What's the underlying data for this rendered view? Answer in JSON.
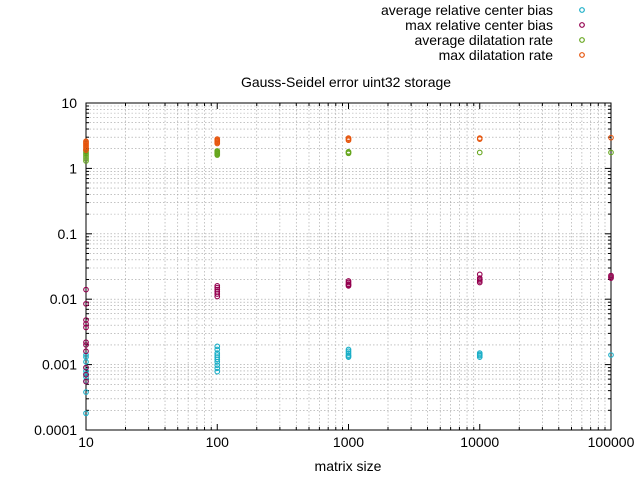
{
  "chart_data": {
    "type": "scatter",
    "title": "Gauss-Seidel error uint32 storage",
    "xlabel": "matrix size",
    "ylabel": "",
    "x_scale": "log",
    "y_scale": "log",
    "xlim": [
      10,
      100000
    ],
    "ylim": [
      0.0001,
      10
    ],
    "grid": true,
    "legend_position": "top-right",
    "x_ticks": [
      {
        "value": 10,
        "label": "10"
      },
      {
        "value": 100,
        "label": "100"
      },
      {
        "value": 1000,
        "label": "1000"
      },
      {
        "value": 10000,
        "label": "10000"
      },
      {
        "value": 100000,
        "label": "100000"
      }
    ],
    "y_ticks": [
      {
        "value": 0.0001,
        "label": "0.0001"
      },
      {
        "value": 0.001,
        "label": "0.001"
      },
      {
        "value": 0.01,
        "label": "0.01"
      },
      {
        "value": 0.1,
        "label": "0.1"
      },
      {
        "value": 1,
        "label": "1"
      },
      {
        "value": 10,
        "label": "10"
      }
    ],
    "series": [
      {
        "name": "average relative center bias",
        "color": "#1aaec7",
        "points": [
          [
            10,
            0.00018
          ],
          [
            10,
            0.00038
          ],
          [
            10,
            0.00056
          ],
          [
            10,
            0.00065
          ],
          [
            10,
            0.00072
          ],
          [
            10,
            0.0008
          ],
          [
            10,
            0.0009
          ],
          [
            10,
            0.0011
          ],
          [
            10,
            0.0013
          ],
          [
            10,
            0.0014
          ],
          [
            100,
            0.00078
          ],
          [
            100,
            0.00088
          ],
          [
            100,
            0.00098
          ],
          [
            100,
            0.0011
          ],
          [
            100,
            0.0012
          ],
          [
            100,
            0.0013
          ],
          [
            100,
            0.0014
          ],
          [
            100,
            0.0015
          ],
          [
            100,
            0.0017
          ],
          [
            100,
            0.0019
          ],
          [
            1000,
            0.0013
          ],
          [
            1000,
            0.00135
          ],
          [
            1000,
            0.0014
          ],
          [
            1000,
            0.0015
          ],
          [
            1000,
            0.0016
          ],
          [
            1000,
            0.0017
          ],
          [
            10000,
            0.0013
          ],
          [
            10000,
            0.00137
          ],
          [
            10000,
            0.00143
          ],
          [
            10000,
            0.0015
          ],
          [
            100000,
            0.0014
          ]
        ]
      },
      {
        "name": "max relative center bias",
        "color": "#94004f",
        "points": [
          [
            10,
            0.00055
          ],
          [
            10,
            0.0007
          ],
          [
            10,
            0.0009
          ],
          [
            10,
            0.0016
          ],
          [
            10,
            0.002
          ],
          [
            10,
            0.0022
          ],
          [
            10,
            0.0037
          ],
          [
            10,
            0.0042
          ],
          [
            10,
            0.0048
          ],
          [
            10,
            0.0085
          ],
          [
            10,
            0.014
          ],
          [
            100,
            0.011
          ],
          [
            100,
            0.012
          ],
          [
            100,
            0.013
          ],
          [
            100,
            0.014
          ],
          [
            100,
            0.015
          ],
          [
            100,
            0.016
          ],
          [
            1000,
            0.016
          ],
          [
            1000,
            0.0165
          ],
          [
            1000,
            0.017
          ],
          [
            1000,
            0.018
          ],
          [
            1000,
            0.019
          ],
          [
            10000,
            0.018
          ],
          [
            10000,
            0.019
          ],
          [
            10000,
            0.02
          ],
          [
            10000,
            0.021
          ],
          [
            10000,
            0.024
          ],
          [
            100000,
            0.021
          ],
          [
            100000,
            0.022
          ],
          [
            100000,
            0.023
          ]
        ]
      },
      {
        "name": "average dilatation rate",
        "color": "#66a61e",
        "points": [
          [
            10,
            1.3
          ],
          [
            10,
            1.4
          ],
          [
            10,
            1.5
          ],
          [
            10,
            1.6
          ],
          [
            10,
            1.7
          ],
          [
            10,
            1.8
          ],
          [
            10,
            1.9
          ],
          [
            100,
            1.6
          ],
          [
            100,
            1.65
          ],
          [
            100,
            1.7
          ],
          [
            100,
            1.75
          ],
          [
            100,
            1.8
          ],
          [
            100,
            1.85
          ],
          [
            1000,
            1.7
          ],
          [
            1000,
            1.75
          ],
          [
            1000,
            1.8
          ],
          [
            10000,
            1.75
          ],
          [
            100000,
            1.75
          ]
        ]
      },
      {
        "name": "max dilatation rate",
        "color": "#e6550d",
        "points": [
          [
            10,
            1.9
          ],
          [
            10,
            2.0
          ],
          [
            10,
            2.1
          ],
          [
            10,
            2.2
          ],
          [
            10,
            2.3
          ],
          [
            10,
            2.4
          ],
          [
            10,
            2.5
          ],
          [
            10,
            2.6
          ],
          [
            100,
            2.4
          ],
          [
            100,
            2.5
          ],
          [
            100,
            2.6
          ],
          [
            100,
            2.7
          ],
          [
            100,
            2.8
          ],
          [
            1000,
            2.7
          ],
          [
            1000,
            2.8
          ],
          [
            1000,
            2.9
          ],
          [
            10000,
            2.8
          ],
          [
            10000,
            2.9
          ],
          [
            100000,
            2.95
          ]
        ]
      }
    ]
  }
}
